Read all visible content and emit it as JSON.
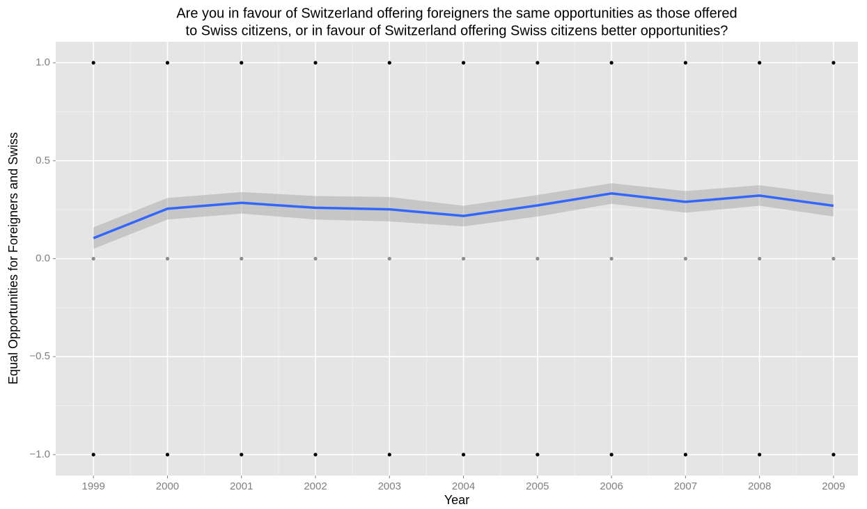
{
  "chart_data": {
    "type": "line",
    "title": [
      "Are you in favour of Switzerland offering foreigners the same opportunities as those offered",
      "to Swiss citizens, or in favour of Switzerland offering Swiss citizens better opportunities?"
    ],
    "x_label": "Year",
    "y_label": "Equal Opportunities for Foreigners and Swiss",
    "x": [
      1999,
      2000,
      2001,
      2002,
      2003,
      2004,
      2005,
      2006,
      2007,
      2008,
      2009
    ],
    "series": [
      {
        "color": "#3366ff",
        "values": [
          0.105,
          0.255,
          0.285,
          0.26,
          0.252,
          0.218,
          0.272,
          0.333,
          0.29,
          0.322,
          0.27
        ]
      }
    ],
    "band_upper": [
      0.16,
      0.31,
      0.34,
      0.32,
      0.315,
      0.27,
      0.325,
      0.385,
      0.345,
      0.375,
      0.325
    ],
    "band_lower": [
      0.05,
      0.2,
      0.23,
      0.2,
      0.19,
      0.165,
      0.215,
      0.28,
      0.235,
      0.27,
      0.215
    ],
    "band_color": "#999999",
    "points": [
      {
        "color": "#000000",
        "values": [
          1,
          1,
          1,
          1,
          1,
          1,
          1,
          1,
          1,
          1,
          1
        ]
      },
      {
        "color": "#8c8c8c",
        "values": [
          0,
          0,
          0,
          0,
          0,
          0,
          0,
          0,
          0,
          0,
          0
        ]
      },
      {
        "color": "#000000",
        "values": [
          -1,
          -1,
          -1,
          -1,
          -1,
          -1,
          -1,
          -1,
          -1,
          -1,
          -1
        ]
      }
    ],
    "xlim": [
      1998.49,
      2009.33
    ],
    "ylim": [
      -1.107,
      1.107
    ],
    "xticks": [
      1999,
      2000,
      2001,
      2002,
      2003,
      2004,
      2005,
      2006,
      2007,
      2008,
      2009
    ],
    "yticks": [
      {
        "value": -1,
        "label": "−1.0"
      },
      {
        "value": -0.5,
        "label": "−0.5"
      },
      {
        "value": 0,
        "label": "0.0"
      },
      {
        "value": 0.5,
        "label": "0.5"
      },
      {
        "value": 1,
        "label": "1.0"
      }
    ],
    "grid": true
  }
}
